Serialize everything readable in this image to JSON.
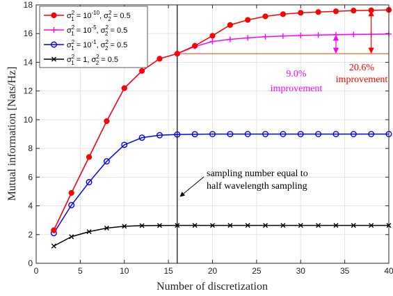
{
  "chart_data": {
    "type": "line",
    "xlabel": "Number of discretization",
    "ylabel": "Mutual information [Nats/Hz]",
    "xlim": [
      0,
      40
    ],
    "ylim": [
      0,
      18
    ],
    "xticks": [
      0,
      5,
      10,
      15,
      20,
      25,
      30,
      35,
      40
    ],
    "yticks": [
      0,
      2,
      4,
      6,
      8,
      10,
      12,
      14,
      16,
      18
    ],
    "grid": true,
    "legend_position": "top-left",
    "x": [
      2,
      4,
      6,
      8,
      10,
      12,
      14,
      16,
      18,
      20,
      22,
      24,
      26,
      28,
      30,
      32,
      34,
      36,
      38,
      40
    ],
    "series": [
      {
        "label_main": "σ",
        "label_sup1": "2",
        "label_sub1": "1",
        "label_mid": " = 10",
        "label_sup_exp": "-10",
        "label_tail": ", σ",
        "label_sup2": "2",
        "label_sub2": "2",
        "label_end": " = 0.5",
        "color": "#ff0000",
        "marker": "circle-filled",
        "values": [
          2.3,
          4.9,
          7.4,
          9.9,
          12.2,
          13.4,
          14.25,
          14.6,
          15.15,
          15.85,
          16.6,
          16.95,
          17.2,
          17.35,
          17.45,
          17.5,
          17.55,
          17.6,
          17.62,
          17.65
        ]
      },
      {
        "label_main": "σ",
        "label_sup1": "2",
        "label_sub1": "1",
        "label_mid": " = 10",
        "label_sup_exp": "-5",
        "label_tail": ", σ",
        "label_sup2": "2",
        "label_sub2": "2",
        "label_end": " = 0.5",
        "color": "#ff00ff",
        "marker": "plus",
        "values": [
          2.3,
          4.9,
          7.4,
          9.9,
          12.2,
          13.4,
          14.25,
          14.6,
          15.1,
          15.45,
          15.6,
          15.7,
          15.78,
          15.83,
          15.87,
          15.9,
          15.92,
          15.94,
          15.95,
          15.97
        ]
      },
      {
        "label_main": "σ",
        "label_sup1": "2",
        "label_sub1": "1",
        "label_mid": " = 10",
        "label_sup_exp": "-1",
        "label_tail": ", σ",
        "label_sup2": "2",
        "label_sub2": "2",
        "label_end": " = 0.5",
        "color": "#0000ff",
        "marker": "circle-open",
        "values": [
          2.1,
          4.05,
          5.65,
          7.1,
          8.25,
          8.75,
          8.92,
          8.97,
          8.99,
          9.0,
          9.0,
          9.0,
          9.0,
          9.0,
          9.0,
          9.0,
          9.0,
          9.0,
          9.0,
          9.0
        ]
      },
      {
        "label_main": "σ",
        "label_sup1": "2",
        "label_sub1": "1",
        "label_mid": " = 1",
        "label_sup_exp": "",
        "label_tail": ", σ",
        "label_sup2": "2",
        "label_sub2": "2",
        "label_end": " = 0.5",
        "color": "#000000",
        "marker": "x",
        "values": [
          1.2,
          1.85,
          2.2,
          2.45,
          2.58,
          2.62,
          2.63,
          2.64,
          2.64,
          2.64,
          2.64,
          2.64,
          2.64,
          2.64,
          2.64,
          2.64,
          2.64,
          2.64,
          2.64,
          2.64
        ]
      }
    ],
    "reference_line": {
      "y": 14.6,
      "x_from": 16,
      "x_to": 40,
      "color": "#d9541a"
    },
    "vertical_line": {
      "x": 16,
      "color": "#000000"
    },
    "annotations": {
      "sampling_line1": "sampling number equal to",
      "sampling_line2": "half wavelength sampling",
      "improvement_red_pct": "20.6%",
      "improvement_red_word": "improvement",
      "improvement_mag_pct": "9.0%",
      "improvement_mag_word": "improvement"
    }
  }
}
